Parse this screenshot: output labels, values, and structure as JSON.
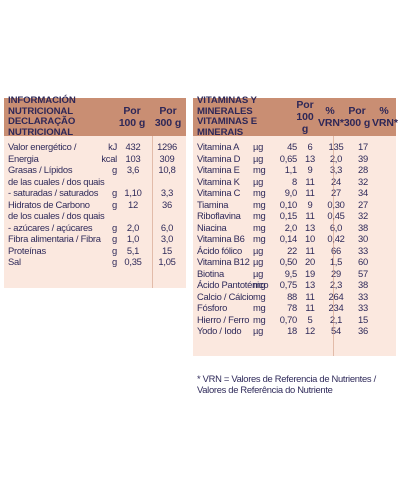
{
  "left_table": {
    "header": {
      "title_line1": "INFORMACIÓN NUTRICIONAL",
      "title_line2": "DECLARAÇÃO NUTRICIONAL",
      "col1_line1": "Por",
      "col1_line2": "100 g",
      "col2_line1": "Por",
      "col2_line2": "300 g"
    },
    "rows": [
      {
        "label": "Valor energético /",
        "unit": "kJ",
        "v100": "432",
        "v300": "1296"
      },
      {
        "label": "Energia",
        "unit": "kcal",
        "v100": "103",
        "v300": "309"
      },
      {
        "label": "Grasas / Lípidos",
        "unit": "g",
        "v100": "3,6",
        "v300": "10,8"
      },
      {
        "label": "de las cuales / dos quais",
        "unit": "",
        "v100": "",
        "v300": ""
      },
      {
        "label": "- saturadas / saturados",
        "unit": "g",
        "v100": "1,10",
        "v300": "3,3"
      },
      {
        "label": "Hidratos de Carbono",
        "unit": "g",
        "v100": "12",
        "v300": "36"
      },
      {
        "label": "de los cuales / dos quais",
        "unit": "",
        "v100": "",
        "v300": ""
      },
      {
        "label": "- azúcares / açúcares",
        "unit": "g",
        "v100": "2,0",
        "v300": "6,0"
      },
      {
        "label": "Fibra alimentaria / Fibra",
        "unit": "g",
        "v100": "1,0",
        "v300": "3,0"
      },
      {
        "label": "Proteínas",
        "unit": "g",
        "v100": "5,1",
        "v300": "15"
      },
      {
        "label": "Sal",
        "unit": "g",
        "v100": "0,35",
        "v300": "1,05"
      }
    ]
  },
  "right_table": {
    "header": {
      "title_line1": "VITAMINAS Y MINERALES",
      "title_line2": "VITAMINAS E MINERAIS",
      "col1_line1": "Por",
      "col1_line2": "100 g",
      "col2_line1": "%",
      "col2_line2": "VRN*",
      "col3_line1": "Por",
      "col3_line2": "300 g",
      "col4_line1": "%",
      "col4_line2": "VRN*"
    },
    "rows": [
      {
        "label": "Vitamina A",
        "unit": "µg",
        "v100": "45",
        "p100": "6",
        "v300": "135",
        "p300": "17"
      },
      {
        "label": "Vitamina D",
        "unit": "µg",
        "v100": "0,65",
        "p100": "13",
        "v300": "2,0",
        "p300": "39"
      },
      {
        "label": "Vitamina E",
        "unit": "mg",
        "v100": "1,1",
        "p100": "9",
        "v300": "3,3",
        "p300": "28"
      },
      {
        "label": "Vitamina K",
        "unit": "µg",
        "v100": "8",
        "p100": "11",
        "v300": "24",
        "p300": "32"
      },
      {
        "label": "Vitamina C",
        "unit": "mg",
        "v100": "9,0",
        "p100": "11",
        "v300": "27",
        "p300": "34"
      },
      {
        "label": "Tiamina",
        "unit": "mg",
        "v100": "0,10",
        "p100": "9",
        "v300": "0,30",
        "p300": "27"
      },
      {
        "label": "Riboflavina",
        "unit": "mg",
        "v100": "0,15",
        "p100": "11",
        "v300": "0,45",
        "p300": "32"
      },
      {
        "label": "Niacina",
        "unit": "mg",
        "v100": "2,0",
        "p100": "13",
        "v300": "6,0",
        "p300": "38"
      },
      {
        "label": "Vitamina B6",
        "unit": "mg",
        "v100": "0,14",
        "p100": "10",
        "v300": "0,42",
        "p300": "30"
      },
      {
        "label": "Ácido fólico",
        "unit": "µg",
        "v100": "22",
        "p100": "11",
        "v300": "66",
        "p300": "33"
      },
      {
        "label": "Vitamina B12",
        "unit": "µg",
        "v100": "0,50",
        "p100": "20",
        "v300": "1,5",
        "p300": "60"
      },
      {
        "label": "Biotina",
        "unit": "µg",
        "v100": "9,5",
        "p100": "19",
        "v300": "29",
        "p300": "57"
      },
      {
        "label": "Ácido Pantoténico",
        "unit": "mg",
        "v100": "0,75",
        "p100": "13",
        "v300": "2,3",
        "p300": "38"
      },
      {
        "label": "Calcio / Cálcio",
        "unit": "mg",
        "v100": "88",
        "p100": "11",
        "v300": "264",
        "p300": "33"
      },
      {
        "label": "Fósforo",
        "unit": "mg",
        "v100": "78",
        "p100": "11",
        "v300": "234",
        "p300": "33"
      },
      {
        "label": "Hierro / Ferro",
        "unit": "mg",
        "v100": "0,70",
        "p100": "5",
        "v300": "2,1",
        "p300": "15"
      },
      {
        "label": "Yodo / Iodo",
        "unit": "µg",
        "v100": "18",
        "p100": "12",
        "v300": "54",
        "p300": "36"
      }
    ]
  },
  "footnote": {
    "line1": "* VRN = Valores de Referencia de Nutrientes /",
    "line2": "Valores de Referência do Nutriente"
  },
  "colors": {
    "header_bg": "#c98e73",
    "body_bg": "#fbe8df",
    "text": "#2f2a5a"
  }
}
